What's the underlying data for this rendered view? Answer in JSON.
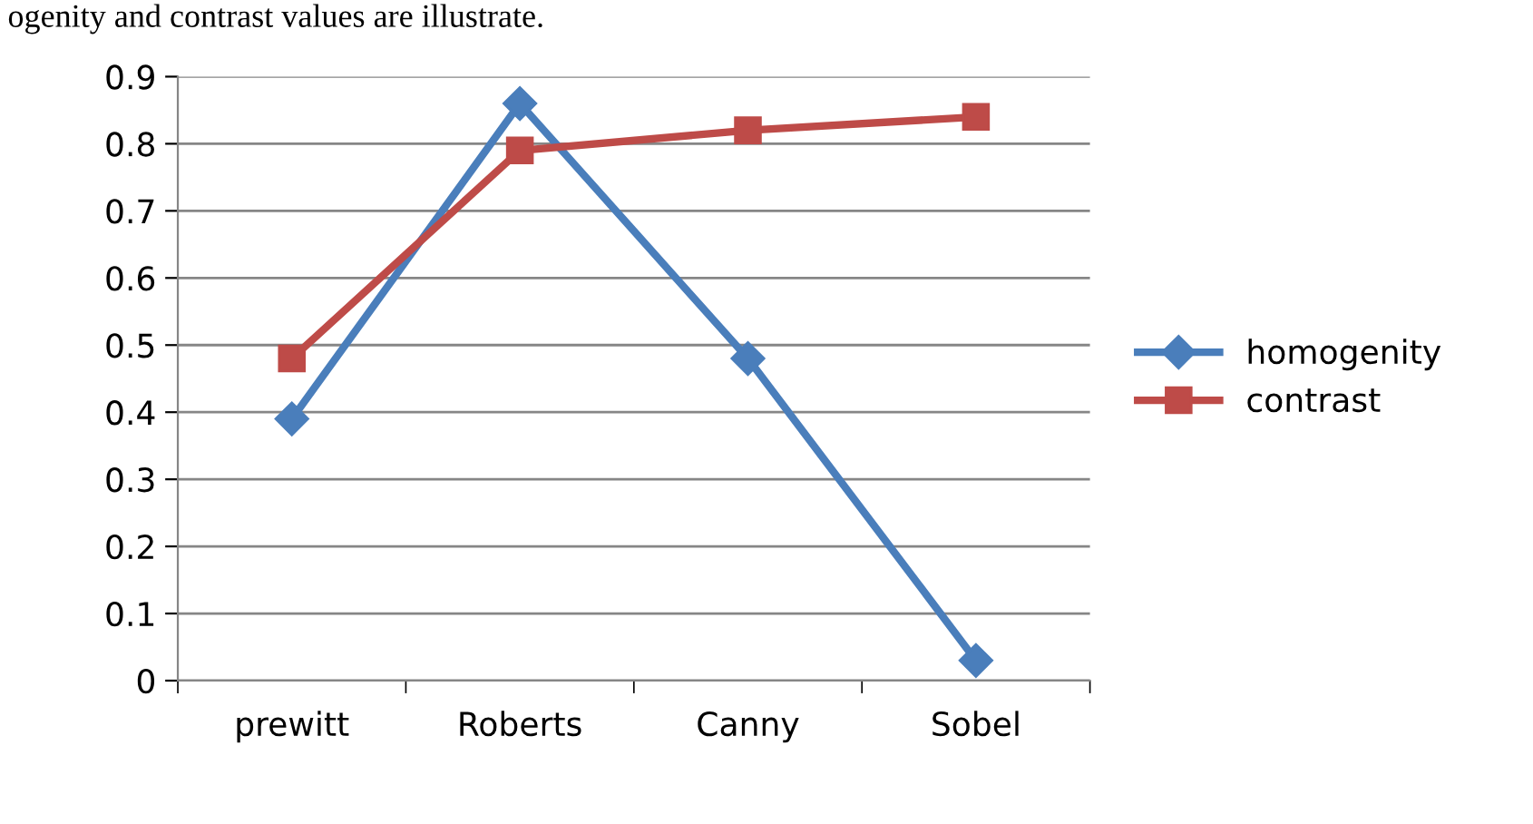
{
  "chart_data": {
    "type": "line",
    "categories": [
      "prewitt",
      "Roberts",
      "Canny",
      "Sobel"
    ],
    "series": [
      {
        "name": "homogenity",
        "color": "#4a7ebb",
        "marker": "diamond",
        "values": [
          0.39,
          0.86,
          0.48,
          0.03
        ]
      },
      {
        "name": "contrast",
        "color": "#be4b48",
        "marker": "square",
        "values": [
          0.48,
          0.79,
          0.82,
          0.84
        ]
      }
    ],
    "ylim": [
      0,
      0.9
    ],
    "yticks": [
      0,
      0.1,
      0.2,
      0.3,
      0.4,
      0.5,
      0.6,
      0.7,
      0.8,
      0.9
    ],
    "grid": "y",
    "legend": "right",
    "line_style": "solid",
    "annotations": [
      "ogenity and contrast values are illustrate."
    ]
  }
}
